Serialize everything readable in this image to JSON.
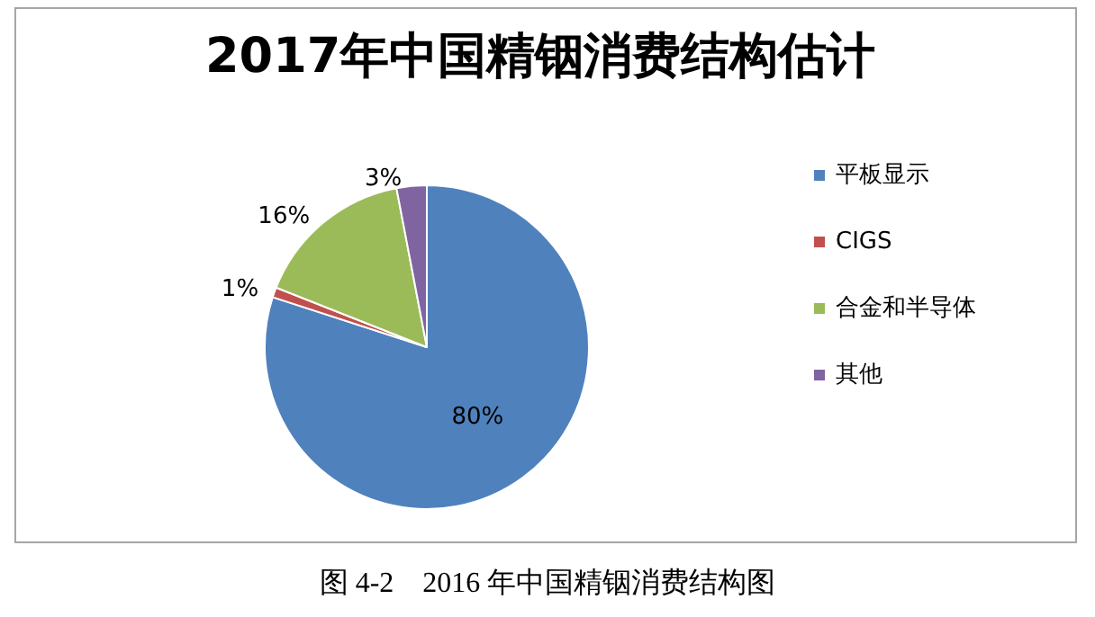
{
  "chart_data": {
    "type": "pie",
    "title": "2017年中国精铟消费结构估计",
    "categories": [
      "平板显示",
      "CIGS",
      "合金和半导体",
      "其他"
    ],
    "values": [
      80,
      1,
      16,
      3
    ],
    "value_labels": [
      "80%",
      "1%",
      "16%",
      "3%"
    ],
    "colors": [
      "#4f81bd",
      "#c0504d",
      "#9bbb59",
      "#8064a2"
    ],
    "legend": "right",
    "annotations": [
      "图 4-2　2016 年中国精铟消费结构图"
    ]
  }
}
